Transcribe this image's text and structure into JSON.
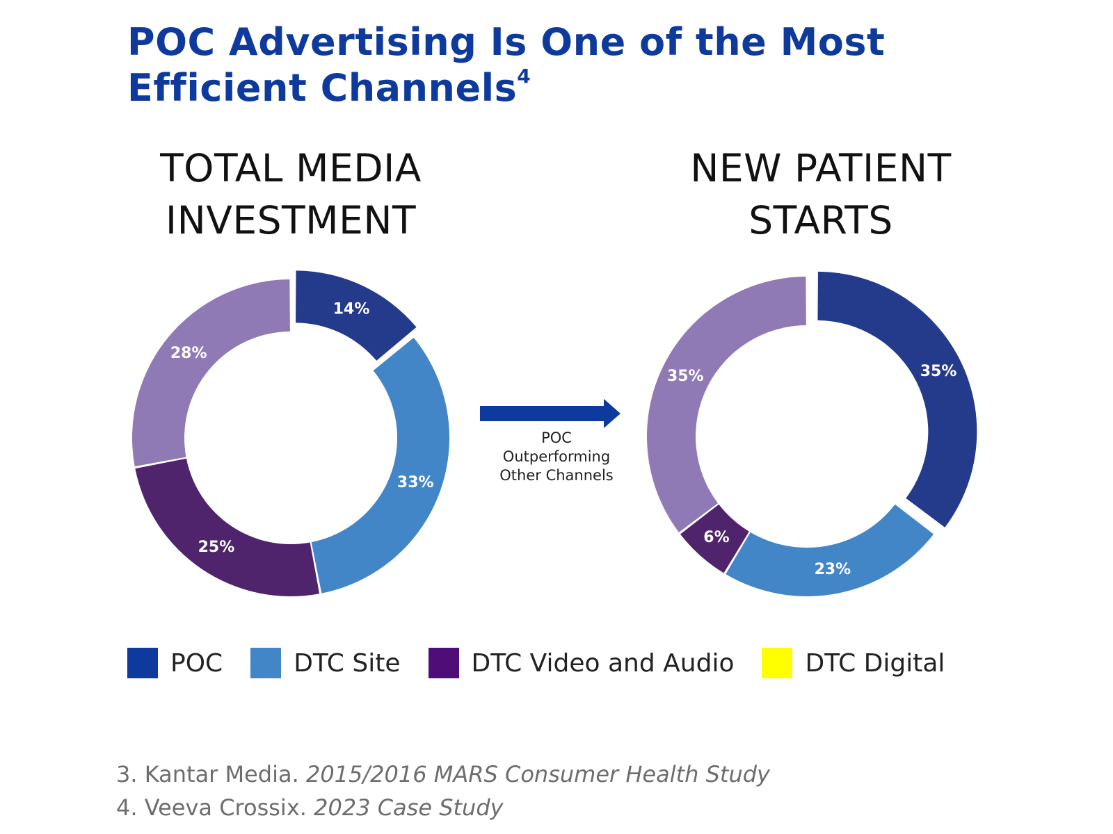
{
  "title": {
    "line1": "POC Advertising Is One of the Most",
    "line2": "Efficient Channels",
    "superscript": "4"
  },
  "colors": {
    "title": "#0d3a9c",
    "poc_slice": "#243a8a",
    "dtc_site": "#4386c8",
    "dtc_video_audio": "#4f246c",
    "other_purple": "#907ab5",
    "arrow": "#0d3a9c"
  },
  "arrow": {
    "line1": "POC",
    "line2": "Outperforming",
    "line3": "Other Channels"
  },
  "legend": [
    {
      "label": "POC",
      "color": "#0d3a9c"
    },
    {
      "label": "DTC Site",
      "color": "#4386c8"
    },
    {
      "label": "DTC Video and Audio",
      "color": "#4f0d78"
    },
    {
      "label": "DTC Digital",
      "color": "#ffff00"
    }
  ],
  "footnotes": [
    {
      "prefix": "3. Kantar Media. ",
      "title": "2015/2016 MARS Consumer Health Study"
    },
    {
      "prefix": "4. Veeva Crossix. ",
      "title": "2023 Case Study"
    }
  ],
  "chart_data": [
    {
      "type": "pie",
      "title_lines": [
        "TOTAL MEDIA",
        "INVESTMENT"
      ],
      "slices": [
        {
          "label": "14%",
          "value": 14,
          "color": "#243a8a"
        },
        {
          "label": "33%",
          "value": 33,
          "color": "#4386c8"
        },
        {
          "label": "25%",
          "value": 25,
          "color": "#4f246c"
        },
        {
          "label": "28%",
          "value": 28,
          "color": "#907ab5"
        }
      ]
    },
    {
      "type": "pie",
      "title_lines": [
        "NEW PATIENT",
        "STARTS"
      ],
      "slices": [
        {
          "label": "35%",
          "value": 35,
          "color": "#243a8a"
        },
        {
          "label": "23%",
          "value": 23,
          "color": "#4386c8"
        },
        {
          "label": "6%",
          "value": 6,
          "color": "#4f246c"
        },
        {
          "label": "35%",
          "value": 35,
          "color": "#907ab5"
        }
      ]
    }
  ]
}
